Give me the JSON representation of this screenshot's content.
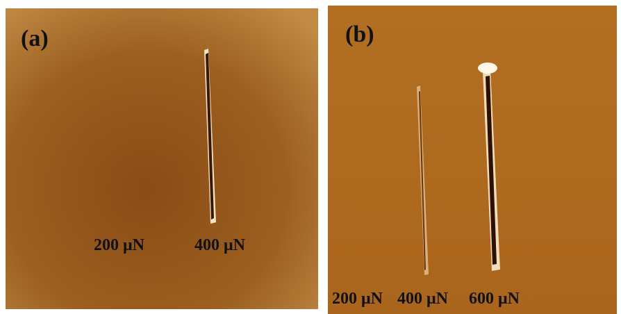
{
  "panels": [
    {
      "label": "(a)",
      "loads": [
        "200 μN",
        "400 μN"
      ]
    },
    {
      "label": "(b)",
      "loads": [
        "200 μN",
        "400 μN",
        "600 μN"
      ]
    }
  ]
}
